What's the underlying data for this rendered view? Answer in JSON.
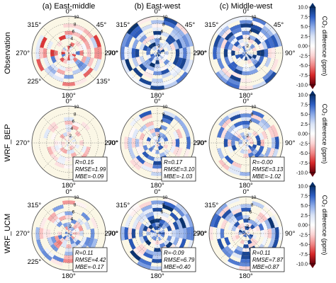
{
  "chart_data": {
    "type": "polar-heatmap",
    "columns": [
      "(a) East-middle",
      "(b) East-west",
      "(c) Middle-west"
    ],
    "rows": [
      "Observation",
      "WRF_BEP",
      "WRF_UCM"
    ],
    "angle_labels": {
      "north": "0°",
      "northeast": "45°",
      "east": "90°",
      "southeast": "135°",
      "south": "180°",
      "southwest": "225°",
      "west": "270°",
      "northwest": "315°"
    },
    "radial_ticks": [
      "2",
      "4",
      "6",
      "8",
      "10"
    ],
    "radial_max": 10,
    "colorbar": {
      "label": "CO₂ difference (ppm)",
      "ticks": [
        "10.0",
        "7.5",
        "5.0",
        "2.5",
        "0.00",
        "-2.5",
        "-5.0",
        "-7.5",
        "-10.0"
      ],
      "min": -10,
      "max": 10,
      "colors": [
        "#08306b",
        "#2f5fc4",
        "#8aa9e8",
        "#d9e3f7",
        "#ffffff",
        "#fbd3d3",
        "#f08585",
        "#d62728",
        "#67000d"
      ]
    },
    "stats": [
      [
        null,
        null,
        null
      ],
      [
        {
          "R": "R=0.15",
          "RMSE": "RMSE=1.99",
          "MBE": "MBE=-0.09"
        },
        {
          "R": "R=0.17",
          "RMSE": "RMSE=3.10",
          "MBE": "MBE=-1.03"
        },
        {
          "R": "R=-0.00",
          "RMSE": "RMSE=3.13",
          "MBE": "MBE=-1.02"
        }
      ],
      [
        {
          "R": "R=0.11",
          "RMSE": "RMSE=4.42",
          "MBE": "MBE=-0.17"
        },
        {
          "R": "R=-0.09",
          "RMSE": "RMSE=6.79",
          "MBE": "MBE=0.40"
        },
        {
          "R": "R=0.11",
          "RMSE": "RMSE=7.87",
          "MBE": "MBE=0.87"
        }
      ]
    ],
    "direction_bins": 16,
    "panels": [
      [
        {
          "bias": -0.4,
          "spread": 3.5,
          "extent": 9,
          "fill": 0.65,
          "seed": 11
        },
        {
          "bias": 4.0,
          "spread": 3.0,
          "extent": 10,
          "fill": 0.85,
          "seed": 12
        },
        {
          "bias": 3.6,
          "spread": 3.0,
          "extent": 10,
          "fill": 0.85,
          "seed": 13
        }
      ],
      [
        {
          "bias": -0.4,
          "spread": 1.8,
          "extent": 7,
          "fill": 0.5,
          "seed": 21
        },
        {
          "bias": 2.8,
          "spread": 3.0,
          "extent": 9,
          "fill": 0.6,
          "seed": 22
        },
        {
          "bias": 2.6,
          "spread": 3.0,
          "extent": 9,
          "fill": 0.6,
          "seed": 23
        }
      ],
      [
        {
          "bias": 0.6,
          "spread": 3.0,
          "extent": 9,
          "fill": 0.6,
          "seed": 31
        },
        {
          "bias": 3.8,
          "spread": 3.2,
          "extent": 10,
          "fill": 0.75,
          "seed": 32
        },
        {
          "bias": 3.4,
          "spread": 3.2,
          "extent": 10,
          "fill": 0.7,
          "seed": 33
        }
      ]
    ]
  }
}
